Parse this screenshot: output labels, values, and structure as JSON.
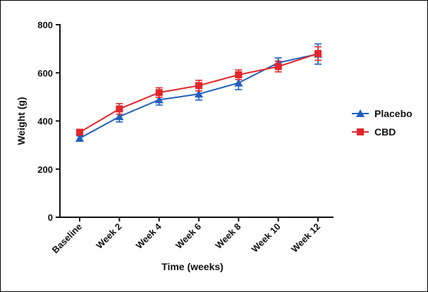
{
  "chart_data": {
    "type": "line",
    "title": "",
    "xlabel": "Time (weeks)",
    "ylabel": "Weight (g)",
    "categories": [
      "Baseline",
      "Week 2",
      "Week 4",
      "Week 6",
      "Week 8",
      "Week 10",
      "Week 12"
    ],
    "ylim": [
      0,
      800
    ],
    "yticks": [
      0,
      200,
      400,
      600,
      800
    ],
    "grid": false,
    "legend_position": "right",
    "series": [
      {
        "name": "Placebo",
        "color": "#1f5fbf",
        "marker": "triangle",
        "values": [
          328,
          418,
          488,
          512,
          558,
          642,
          678
        ],
        "error": [
          10,
          22,
          22,
          25,
          28,
          20,
          42
        ]
      },
      {
        "name": "CBD",
        "color": "#e3262b",
        "marker": "square",
        "values": [
          353,
          450,
          518,
          547,
          592,
          626,
          680
        ],
        "error": [
          12,
          22,
          20,
          22,
          20,
          22,
          28
        ]
      }
    ]
  }
}
